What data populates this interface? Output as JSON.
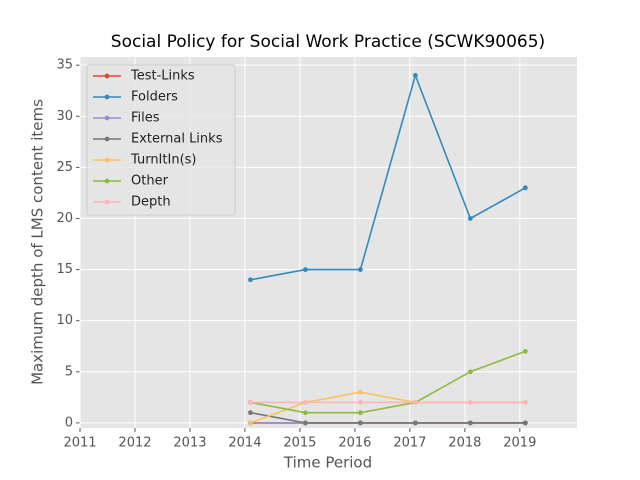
{
  "chart_data": {
    "type": "line",
    "title": "Social Policy for Social Work Practice (SCWK90065)",
    "xlabel": "Time Period",
    "ylabel": "Maximum depth of LMS content items",
    "x": [
      2014.1,
      2015.1,
      2016.1,
      2017.1,
      2018.1,
      2019.1
    ],
    "series": [
      {
        "name": "Test-Links",
        "color": "#E24A33",
        "values": [
          0,
          0,
          0,
          0,
          0,
          0
        ]
      },
      {
        "name": "Folders",
        "color": "#348ABD",
        "values": [
          14,
          15,
          15,
          34,
          20,
          23
        ]
      },
      {
        "name": "Files",
        "color": "#988ED5",
        "values": [
          0,
          0,
          0,
          0,
          0,
          0
        ]
      },
      {
        "name": "External Links",
        "color": "#777777",
        "values": [
          1,
          0,
          0,
          0,
          0,
          0
        ]
      },
      {
        "name": "TurnItIn(s)",
        "color": "#FBC15E",
        "values": [
          0,
          2,
          3,
          2,
          2,
          2
        ]
      },
      {
        "name": "Other",
        "color": "#8EBA42",
        "values": [
          2,
          1,
          1,
          2,
          5,
          7
        ]
      },
      {
        "name": "Depth",
        "color": "#FFB5B8",
        "values": [
          2,
          2,
          2,
          2,
          2,
          2
        ]
      }
    ],
    "xlim": [
      2011,
      2020.04
    ],
    "xticks": [
      2011,
      2012,
      2013,
      2014,
      2015,
      2016,
      2017,
      2018,
      2019
    ],
    "ylim": [
      -0.5,
      35.8
    ],
    "yticks": [
      0,
      5,
      10,
      15,
      20,
      25,
      30,
      35
    ],
    "grid": true,
    "legend": "upper left"
  }
}
